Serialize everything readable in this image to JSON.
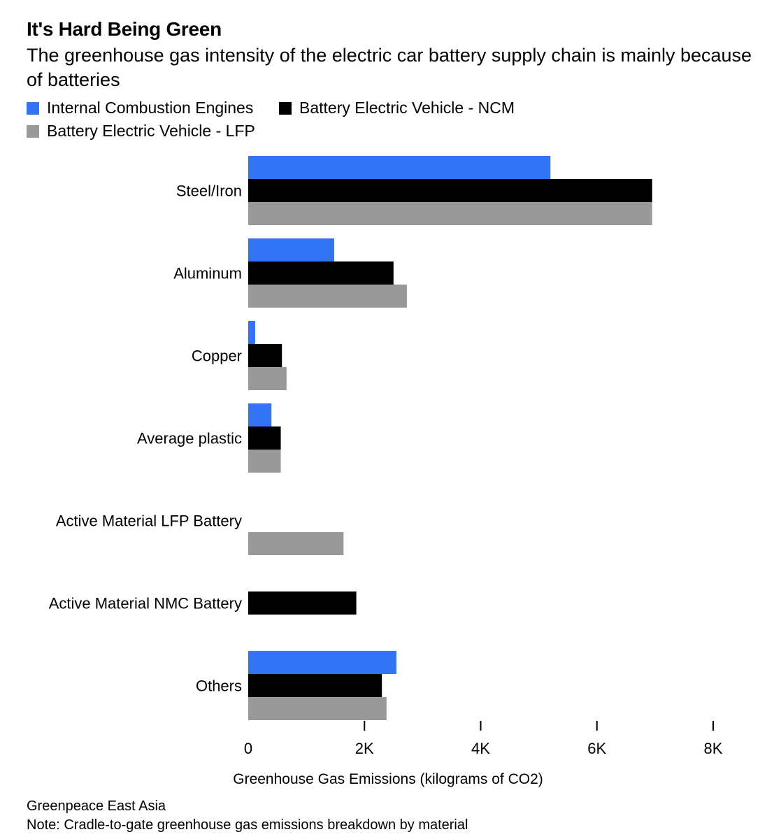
{
  "header": {
    "title": "It's Hard Being Green",
    "subtitle": "The greenhouse gas intensity of the electric car battery supply chain is mainly because of batteries"
  },
  "colors": {
    "ice": "#3373f5",
    "ncm": "#000000",
    "lfp": "#999999"
  },
  "chart_data": {
    "type": "bar",
    "orientation": "horizontal",
    "title": "It's Hard Being Green",
    "subtitle": "The greenhouse gas intensity of the electric car battery supply chain is mainly because of batteries",
    "categories": [
      "Steel/Iron",
      "Aluminum",
      "Copper",
      "Average plastic",
      "Active Material LFP Battery",
      "Active Material NMC Battery",
      "Others"
    ],
    "series": [
      {
        "name": "Internal Combustion Engines",
        "color": "#3373f5",
        "values": [
          5200,
          1480,
          120,
          400,
          null,
          null,
          2550
        ]
      },
      {
        "name": "Battery Electric Vehicle - NCM",
        "color": "#000000",
        "values": [
          6950,
          2500,
          580,
          560,
          null,
          1860,
          2300
        ]
      },
      {
        "name": "Battery Electric Vehicle - LFP",
        "color": "#999999",
        "values": [
          6950,
          2730,
          660,
          560,
          1640,
          null,
          2380
        ]
      }
    ],
    "xlabel": "Greenhouse Gas Emissions (kilograms of CO2)",
    "ylabel": "",
    "xlim": [
      0,
      8000
    ],
    "xticks": [
      "0",
      "2K",
      "4K",
      "6K",
      "8K"
    ],
    "legend_position": "top-left",
    "grid": false
  },
  "source": {
    "line1": "Greenpeace East Asia",
    "line2": "Note: Cradle-to-gate greenhouse gas emissions breakdown by material"
  }
}
